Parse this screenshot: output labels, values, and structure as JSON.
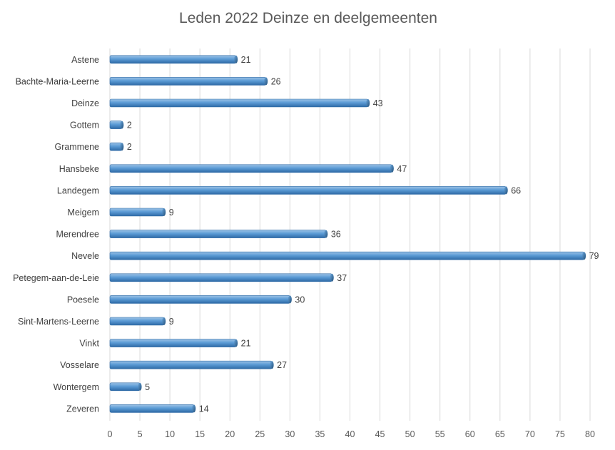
{
  "chart_data": {
    "type": "bar",
    "orientation": "horizontal",
    "title": "Leden 2022 Deinze en deelgemeenten",
    "xlabel": "",
    "ylabel": "",
    "categories": [
      "Astene",
      "Bachte-Maria-Leerne",
      "Deinze",
      "Gottem",
      "Grammene",
      "Hansbeke",
      "Landegem",
      "Meigem",
      "Merendree",
      "Nevele",
      "Petegem-aan-de-Leie",
      "Poesele",
      "Sint-Martens-Leerne",
      "Vinkt",
      "Vosselare",
      "Wontergem",
      "Zeveren"
    ],
    "values": [
      21,
      26,
      43,
      2,
      2,
      47,
      66,
      9,
      36,
      79,
      37,
      30,
      9,
      21,
      27,
      5,
      14
    ],
    "xlim": [
      0,
      80
    ],
    "ticks": [
      0,
      5,
      10,
      15,
      20,
      25,
      30,
      35,
      40,
      45,
      50,
      55,
      60,
      65,
      70,
      75,
      80
    ],
    "grid": "vertical",
    "data_labels": true,
    "legend": "none",
    "bar_color": "#5b9bd5",
    "bar_dark_color": "#2e6aa6",
    "bar_light_color": "#9dc3e6"
  }
}
